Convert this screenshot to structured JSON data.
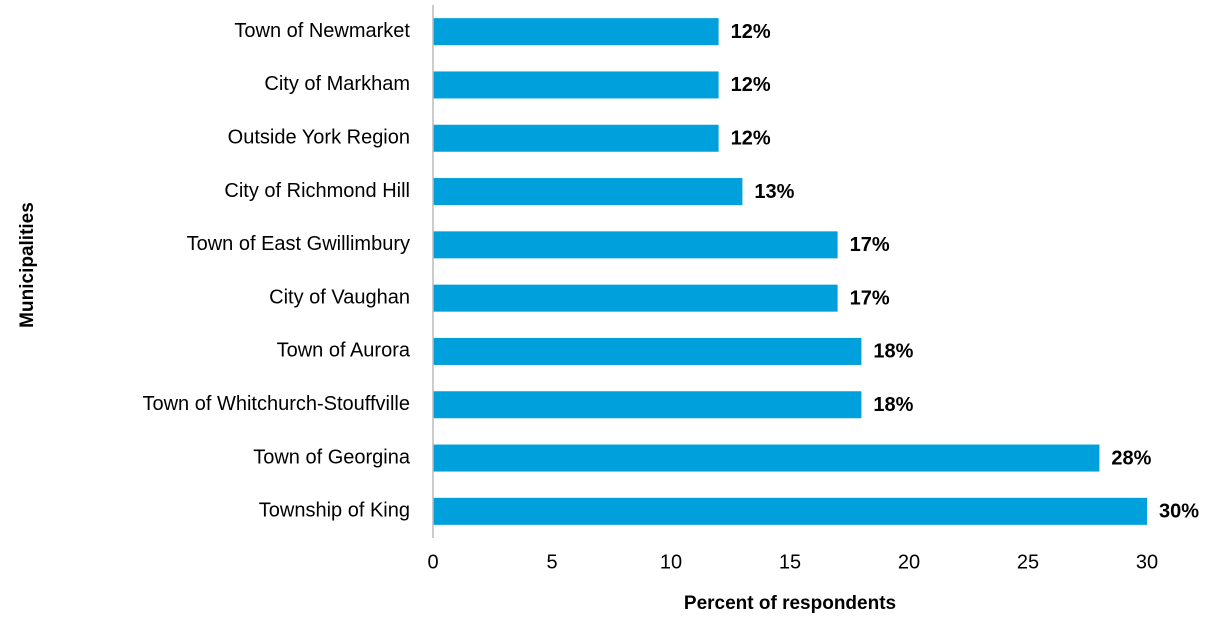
{
  "chart_data": {
    "type": "bar",
    "orientation": "horizontal",
    "x_label": "Percent of respondents",
    "y_label": "Municipalities",
    "categories": [
      "Town of Newmarket",
      "City of Markham",
      "Outside York Region",
      "City of Richmond Hill",
      "Town of East Gwillimbury",
      "City of Vaughan",
      "Town of Aurora",
      "Town of Whitchurch-Stouffville",
      "Town of Georgina",
      "Township of King"
    ],
    "values": [
      12,
      12,
      12,
      13,
      17,
      17,
      18,
      18,
      28,
      30
    ],
    "value_labels": [
      "12%",
      "12%",
      "12%",
      "13%",
      "17%",
      "17%",
      "18%",
      "18%",
      "28%",
      "30%"
    ],
    "color": "#00a0dc",
    "xlim": [
      0,
      30
    ],
    "xticks": [
      0,
      5,
      10,
      15,
      20,
      25,
      30
    ],
    "grid": false
  }
}
